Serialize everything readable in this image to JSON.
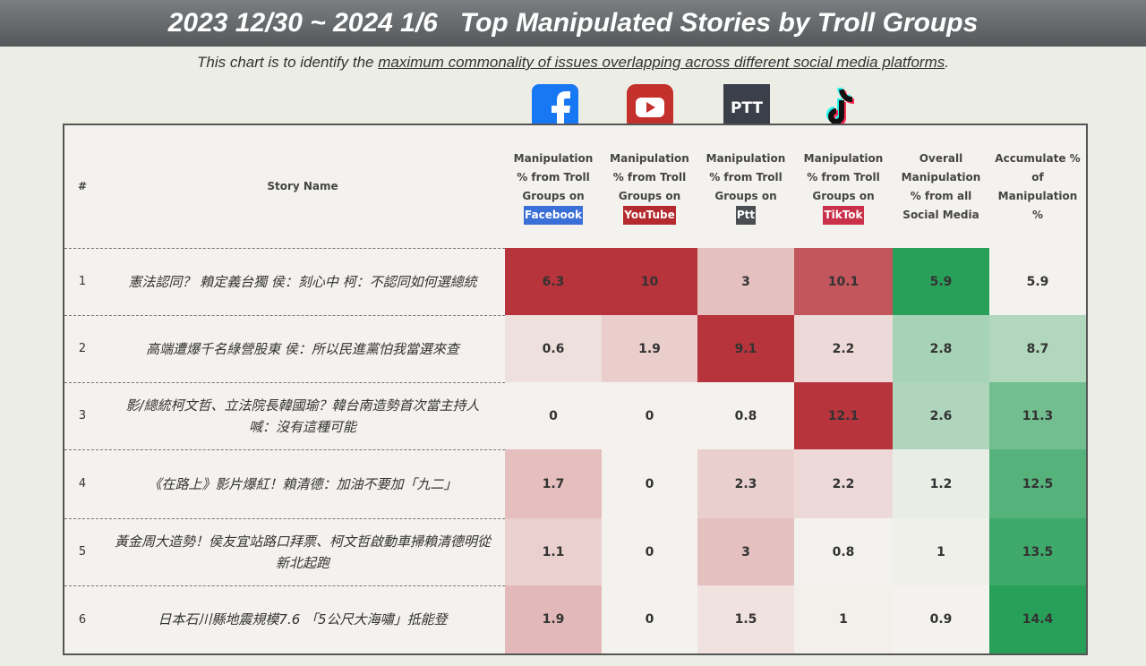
{
  "header": {
    "title": "2023 12/30 ~ 2024 1/6   Top Manipulated Stories by Troll Groups",
    "subtitle": [
      "This chart is to identify the ",
      "maximum commonality of issues overlapping across different social media platforms",
      "."
    ]
  },
  "platform_logos": {
    "ptt": "PTT"
  },
  "table": {
    "columns": [
      {
        "label": "#"
      },
      {
        "label": "Story Name"
      },
      {
        "label": "Manipulation % from Troll Groups on",
        "platform": "Facebook"
      },
      {
        "label": "Manipulation % from Troll Groups on",
        "platform": "YouTube"
      },
      {
        "label": "Manipulation % from Troll Groups on",
        "platform": "Ptt"
      },
      {
        "label": "Manipulation % from Troll Groups on",
        "platform": "TikTok"
      },
      {
        "label": "Overall Manipulation % from all Social Media"
      },
      {
        "label": "Accumulate % of Manipulation %"
      }
    ],
    "rows": [
      [
        1,
        "憲法認同？ 賴定義台獨 侯：刻心中 柯：不認同如何選總統",
        6.3,
        10,
        3,
        10.1,
        5.9,
        5.9
      ],
      [
        2,
        "高端遭爆千名綠營股東 侯：所以民進黨怕我當選來查",
        0.6,
        1.9,
        9.1,
        2.2,
        2.8,
        8.7
      ],
      [
        3,
        "影/總統柯文哲、立法院長韓國瑜？韓台南造勢首次當主持人 喊：沒有這種可能",
        0,
        0,
        0.8,
        12.1,
        2.6,
        11.3
      ],
      [
        4,
        "《在路上》影片爆紅！賴清德：加油不要加「九二」",
        1.7,
        0,
        2.3,
        2.2,
        1.2,
        12.5
      ],
      [
        5,
        "黃金周大造勢！侯友宜站路口拜票、柯文哲啟動車掃賴清德明從新北起跑",
        1.1,
        0,
        3,
        0.8,
        1,
        13.5
      ],
      [
        6,
        "日本石川縣地震規模7.6 「5公尺大海嘯」抵能登",
        1.9,
        0,
        1.5,
        1,
        0.9,
        14.4
      ]
    ]
  }
}
